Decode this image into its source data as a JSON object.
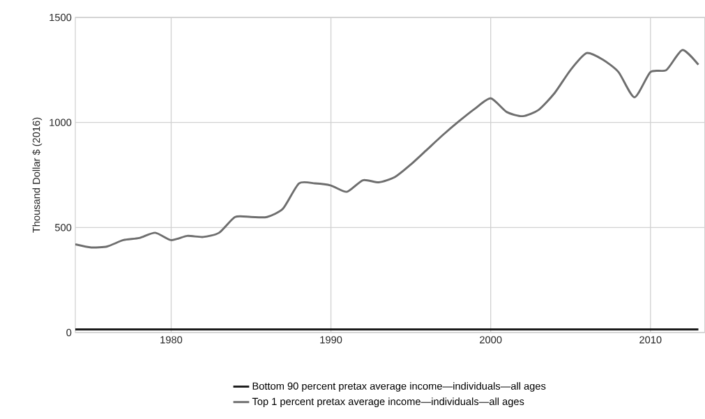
{
  "chart_data": {
    "type": "line",
    "ylabel": "Thousand Dollar $ (2016)",
    "x": [
      1974,
      1975,
      1976,
      1977,
      1978,
      1979,
      1980,
      1981,
      1982,
      1983,
      1984,
      1985,
      1986,
      1987,
      1988,
      1989,
      1990,
      1991,
      1992,
      1993,
      1994,
      1995,
      1996,
      1997,
      1998,
      1999,
      2000,
      2001,
      2002,
      2003,
      2004,
      2005,
      2006,
      2007,
      2008,
      2009,
      2010,
      2011,
      2012,
      2013
    ],
    "series": [
      {
        "name": "Bottom 90 percent pretax average income—individuals—all ages",
        "color": "#1a1a1a",
        "values": [
          15,
          15,
          15,
          15,
          15,
          15,
          15,
          15,
          15,
          15,
          15,
          15,
          15,
          15,
          15,
          15,
          15,
          15,
          15,
          15,
          15,
          15,
          15,
          15,
          15,
          15,
          15,
          15,
          15,
          15,
          15,
          15,
          15,
          15,
          15,
          15,
          15,
          15,
          15,
          15
        ]
      },
      {
        "name": "Top 1 percent pretax average income—individuals—all ages",
        "color": "#6e6e6e",
        "values": [
          420,
          405,
          410,
          440,
          450,
          475,
          440,
          460,
          455,
          475,
          550,
          550,
          550,
          590,
          710,
          710,
          700,
          670,
          725,
          715,
          740,
          800,
          870,
          940,
          1005,
          1065,
          1115,
          1050,
          1030,
          1060,
          1140,
          1250,
          1330,
          1300,
          1240,
          1120,
          1240,
          1250,
          1345,
          1275
        ]
      }
    ],
    "xlim": [
      1974,
      2013.4
    ],
    "ylim": [
      0,
      1500
    ],
    "xticks": [
      1980,
      1990,
      2000,
      2010
    ],
    "yticks": [
      0,
      500,
      1000,
      1500
    ],
    "grid": true,
    "legend": "bottom",
    "marker": "none",
    "line_style": "solid"
  }
}
